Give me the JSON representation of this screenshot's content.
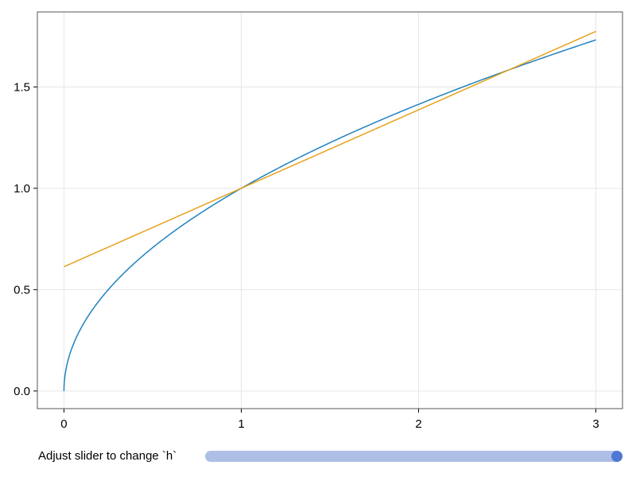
{
  "chart_data": {
    "type": "line",
    "xlim": [
      -0.15,
      3.15
    ],
    "ylim": [
      -0.087,
      1.87
    ],
    "xticks": [
      "0",
      "1",
      "2",
      "3"
    ],
    "yticks": [
      "0.0",
      "0.5",
      "1.0",
      "1.5"
    ],
    "grid": true,
    "series": [
      {
        "color": "#1f82c0",
        "x": [
          0,
          0.005,
          0.01,
          0.02,
          0.04,
          0.07,
          0.1,
          0.15,
          0.2,
          0.3,
          0.4,
          0.5,
          0.7,
          1,
          1.3,
          1.6,
          2,
          2.4,
          2.8,
          3
        ],
        "y": [
          0,
          0.071,
          0.1,
          0.141,
          0.2,
          0.265,
          0.316,
          0.387,
          0.447,
          0.548,
          0.632,
          0.707,
          0.837,
          1,
          1.14,
          1.265,
          1.414,
          1.549,
          1.673,
          1.732
        ]
      },
      {
        "color": "#e6a11a",
        "x": [
          0,
          3
        ],
        "y": [
          0.613,
          1.774
        ]
      }
    ]
  },
  "slider": {
    "label": "Adjust slider to change `h`",
    "fraction": 1.0,
    "h": 1.5,
    "track_color": "#aebfe6",
    "knob_color": "#4f78d4"
  }
}
